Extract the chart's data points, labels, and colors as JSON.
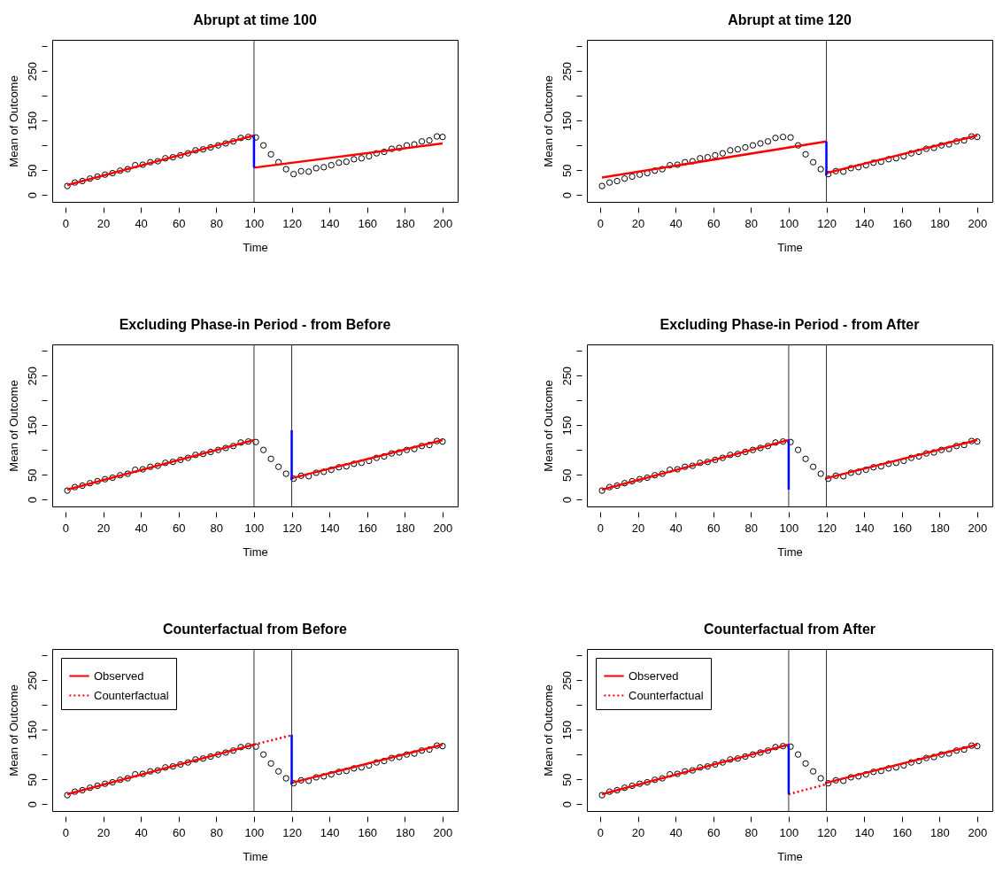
{
  "chart_data": [
    {
      "type": "scatter",
      "title": "Abrupt at time 100",
      "xlabel": "Time",
      "ylabel": "Mean of Outcome",
      "xlim": [
        -7,
        208
      ],
      "ylim": [
        -14,
        313
      ],
      "xticks": [
        0,
        20,
        40,
        60,
        80,
        100,
        120,
        140,
        160,
        180,
        200
      ],
      "yticks": [
        0,
        50,
        {
          "value": 100,
          "label": null
        },
        150,
        {
          "value": 200,
          "label": null
        },
        250,
        {
          "value": 300,
          "label": null
        }
      ],
      "ref_lines": [
        {
          "axis": "x",
          "value": 100
        }
      ],
      "series": [
        {
          "type": "scatter",
          "color": "#000000",
          "marker": "circle",
          "x": [
            1,
            5,
            9,
            13,
            17,
            21,
            25,
            29,
            33,
            37,
            41,
            45,
            49,
            53,
            57,
            61,
            65,
            69,
            73,
            77,
            81,
            85,
            89,
            93,
            97,
            101,
            105,
            109,
            113,
            117,
            121,
            125,
            129,
            133,
            137,
            141,
            145,
            149,
            153,
            157,
            161,
            165,
            169,
            173,
            177,
            181,
            185,
            189,
            193,
            197,
            200
          ],
          "values": [
            18,
            25,
            28,
            33,
            37,
            41,
            44,
            49,
            52,
            60,
            61,
            66,
            68,
            74,
            76,
            80,
            84,
            90,
            92,
            96,
            100,
            104,
            108,
            115,
            117,
            116,
            100,
            82,
            66,
            52,
            42,
            48,
            47,
            54,
            56,
            60,
            65,
            67,
            72,
            74,
            78,
            84,
            87,
            93,
            95,
            100,
            102,
            108,
            110,
            118,
            117
          ]
        },
        {
          "type": "line",
          "color": "#ff0000",
          "line_style": "solid",
          "x": [
            1,
            100
          ],
          "values": [
            20,
            120
          ]
        },
        {
          "type": "line",
          "color": "#ff0000",
          "line_style": "solid",
          "x": [
            100,
            200
          ],
          "values": [
            55,
            104
          ]
        },
        {
          "type": "line",
          "color": "#0000ff",
          "line_style": "solid",
          "x": [
            100,
            100
          ],
          "values": [
            120,
            55
          ]
        }
      ]
    },
    {
      "type": "scatter",
      "title": "Abrupt at time 120",
      "xlabel": "Time",
      "ylabel": "Mean of Outcome",
      "xlim": [
        -7,
        208
      ],
      "ylim": [
        -14,
        313
      ],
      "xticks": [
        0,
        20,
        40,
        60,
        80,
        100,
        120,
        140,
        160,
        180,
        200
      ],
      "yticks": [
        0,
        50,
        {
          "value": 100,
          "label": null
        },
        150,
        {
          "value": 200,
          "label": null
        },
        250,
        {
          "value": 300,
          "label": null
        }
      ],
      "ref_lines": [
        {
          "axis": "x",
          "value": 120
        }
      ],
      "series": [
        {
          "type": "scatter",
          "color": "#000000",
          "marker": "circle",
          "x": [
            1,
            5,
            9,
            13,
            17,
            21,
            25,
            29,
            33,
            37,
            41,
            45,
            49,
            53,
            57,
            61,
            65,
            69,
            73,
            77,
            81,
            85,
            89,
            93,
            97,
            101,
            105,
            109,
            113,
            117,
            121,
            125,
            129,
            133,
            137,
            141,
            145,
            149,
            153,
            157,
            161,
            165,
            169,
            173,
            177,
            181,
            185,
            189,
            193,
            197,
            200
          ],
          "values": [
            18,
            25,
            28,
            33,
            37,
            41,
            44,
            49,
            52,
            60,
            61,
            66,
            68,
            74,
            76,
            80,
            84,
            90,
            92,
            96,
            100,
            104,
            108,
            115,
            117,
            116,
            100,
            82,
            66,
            52,
            42,
            48,
            47,
            54,
            56,
            60,
            65,
            67,
            72,
            74,
            78,
            84,
            87,
            93,
            95,
            100,
            102,
            108,
            110,
            118,
            117
          ]
        },
        {
          "type": "line",
          "color": "#ff0000",
          "line_style": "solid",
          "x": [
            1,
            120
          ],
          "values": [
            35,
            108
          ]
        },
        {
          "type": "line",
          "color": "#ff0000",
          "line_style": "solid",
          "x": [
            120,
            200
          ],
          "values": [
            44,
            120
          ]
        },
        {
          "type": "line",
          "color": "#0000ff",
          "line_style": "solid",
          "x": [
            120,
            120
          ],
          "values": [
            108,
            40
          ]
        }
      ]
    },
    {
      "type": "scatter",
      "title": "Excluding Phase-in Period - from Before",
      "xlabel": "Time",
      "ylabel": "Mean of Outcome",
      "xlim": [
        -7,
        208
      ],
      "ylim": [
        -14,
        313
      ],
      "xticks": [
        0,
        20,
        40,
        60,
        80,
        100,
        120,
        140,
        160,
        180,
        200
      ],
      "yticks": [
        0,
        50,
        {
          "value": 100,
          "label": null
        },
        150,
        {
          "value": 200,
          "label": null
        },
        250,
        {
          "value": 300,
          "label": null
        }
      ],
      "ref_lines": [
        {
          "axis": "x",
          "value": 100
        },
        {
          "axis": "x",
          "value": 120
        }
      ],
      "series": [
        {
          "type": "scatter",
          "color": "#000000",
          "marker": "circle",
          "x": [
            1,
            5,
            9,
            13,
            17,
            21,
            25,
            29,
            33,
            37,
            41,
            45,
            49,
            53,
            57,
            61,
            65,
            69,
            73,
            77,
            81,
            85,
            89,
            93,
            97,
            101,
            105,
            109,
            113,
            117,
            121,
            125,
            129,
            133,
            137,
            141,
            145,
            149,
            153,
            157,
            161,
            165,
            169,
            173,
            177,
            181,
            185,
            189,
            193,
            197,
            200
          ],
          "values": [
            18,
            25,
            28,
            33,
            37,
            41,
            44,
            49,
            52,
            60,
            61,
            66,
            68,
            74,
            76,
            80,
            84,
            90,
            92,
            96,
            100,
            104,
            108,
            115,
            117,
            116,
            100,
            82,
            66,
            52,
            42,
            48,
            47,
            54,
            56,
            60,
            65,
            67,
            72,
            74,
            78,
            84,
            87,
            93,
            95,
            100,
            102,
            108,
            110,
            118,
            117
          ]
        },
        {
          "type": "line",
          "color": "#ff0000",
          "line_style": "solid",
          "x": [
            1,
            100
          ],
          "values": [
            20,
            120
          ]
        },
        {
          "type": "line",
          "color": "#ff0000",
          "line_style": "solid",
          "x": [
            120,
            200
          ],
          "values": [
            43,
            120
          ]
        },
        {
          "type": "line",
          "color": "#0000ff",
          "line_style": "solid",
          "x": [
            120,
            120
          ],
          "values": [
            140,
            40
          ]
        }
      ]
    },
    {
      "type": "scatter",
      "title": "Excluding Phase-in Period - from After",
      "xlabel": "Time",
      "ylabel": "Mean of Outcome",
      "xlim": [
        -7,
        208
      ],
      "ylim": [
        -14,
        313
      ],
      "xticks": [
        0,
        20,
        40,
        60,
        80,
        100,
        120,
        140,
        160,
        180,
        200
      ],
      "yticks": [
        0,
        50,
        {
          "value": 100,
          "label": null
        },
        150,
        {
          "value": 200,
          "label": null
        },
        250,
        {
          "value": 300,
          "label": null
        }
      ],
      "ref_lines": [
        {
          "axis": "x",
          "value": 100
        },
        {
          "axis": "x",
          "value": 120
        }
      ],
      "series": [
        {
          "type": "scatter",
          "color": "#000000",
          "marker": "circle",
          "x": [
            1,
            5,
            9,
            13,
            17,
            21,
            25,
            29,
            33,
            37,
            41,
            45,
            49,
            53,
            57,
            61,
            65,
            69,
            73,
            77,
            81,
            85,
            89,
            93,
            97,
            101,
            105,
            109,
            113,
            117,
            121,
            125,
            129,
            133,
            137,
            141,
            145,
            149,
            153,
            157,
            161,
            165,
            169,
            173,
            177,
            181,
            185,
            189,
            193,
            197,
            200
          ],
          "values": [
            18,
            25,
            28,
            33,
            37,
            41,
            44,
            49,
            52,
            60,
            61,
            66,
            68,
            74,
            76,
            80,
            84,
            90,
            92,
            96,
            100,
            104,
            108,
            115,
            117,
            116,
            100,
            82,
            66,
            52,
            42,
            48,
            47,
            54,
            56,
            60,
            65,
            67,
            72,
            74,
            78,
            84,
            87,
            93,
            95,
            100,
            102,
            108,
            110,
            118,
            117
          ]
        },
        {
          "type": "line",
          "color": "#ff0000",
          "line_style": "solid",
          "x": [
            1,
            100
          ],
          "values": [
            20,
            120
          ]
        },
        {
          "type": "line",
          "color": "#ff0000",
          "line_style": "solid",
          "x": [
            120,
            200
          ],
          "values": [
            43,
            120
          ]
        },
        {
          "type": "line",
          "color": "#0000ff",
          "line_style": "solid",
          "x": [
            100,
            100
          ],
          "values": [
            120,
            20
          ]
        }
      ]
    },
    {
      "type": "scatter",
      "title": "Counterfactual from Before",
      "xlabel": "Time",
      "ylabel": "Mean of Outcome",
      "xlim": [
        -7,
        208
      ],
      "ylim": [
        -14,
        313
      ],
      "xticks": [
        0,
        20,
        40,
        60,
        80,
        100,
        120,
        140,
        160,
        180,
        200
      ],
      "yticks": [
        0,
        50,
        {
          "value": 100,
          "label": null
        },
        150,
        {
          "value": 200,
          "label": null
        },
        250,
        {
          "value": 300,
          "label": null
        }
      ],
      "ref_lines": [
        {
          "axis": "x",
          "value": 100
        },
        {
          "axis": "x",
          "value": 120
        }
      ],
      "legend": "top left",
      "series": [
        {
          "type": "scatter",
          "color": "#000000",
          "marker": "circle",
          "x": [
            1,
            5,
            9,
            13,
            17,
            21,
            25,
            29,
            33,
            37,
            41,
            45,
            49,
            53,
            57,
            61,
            65,
            69,
            73,
            77,
            81,
            85,
            89,
            93,
            97,
            101,
            105,
            109,
            113,
            117,
            121,
            125,
            129,
            133,
            137,
            141,
            145,
            149,
            153,
            157,
            161,
            165,
            169,
            173,
            177,
            181,
            185,
            189,
            193,
            197,
            200
          ],
          "values": [
            18,
            25,
            28,
            33,
            37,
            41,
            44,
            49,
            52,
            60,
            61,
            66,
            68,
            74,
            76,
            80,
            84,
            90,
            92,
            96,
            100,
            104,
            108,
            115,
            117,
            116,
            100,
            82,
            66,
            52,
            42,
            48,
            47,
            54,
            56,
            60,
            65,
            67,
            72,
            74,
            78,
            84,
            87,
            93,
            95,
            100,
            102,
            108,
            110,
            118,
            117
          ]
        },
        {
          "type": "line",
          "name": "Observed",
          "color": "#ff0000",
          "line_style": "solid",
          "x": [
            1,
            100,
            110,
            120,
            200
          ],
          "values": [
            20,
            120,
            null,
            43,
            120
          ]
        },
        {
          "type": "line",
          "name": "Counterfactual",
          "color": "#ff0000",
          "line_style": "dotted",
          "x": [
            100,
            120
          ],
          "values": [
            120,
            139
          ]
        },
        {
          "type": "line",
          "color": "#0000ff",
          "line_style": "solid",
          "x": [
            120,
            120
          ],
          "values": [
            140,
            40
          ]
        }
      ]
    },
    {
      "type": "scatter",
      "title": "Counterfactual from After",
      "xlabel": "Time",
      "ylabel": "Mean of Outcome",
      "xlim": [
        -7,
        208
      ],
      "ylim": [
        -14,
        313
      ],
      "xticks": [
        0,
        20,
        40,
        60,
        80,
        100,
        120,
        140,
        160,
        180,
        200
      ],
      "yticks": [
        0,
        50,
        {
          "value": 100,
          "label": null
        },
        150,
        {
          "value": 200,
          "label": null
        },
        250,
        {
          "value": 300,
          "label": null
        }
      ],
      "ref_lines": [
        {
          "axis": "x",
          "value": 100
        },
        {
          "axis": "x",
          "value": 120
        }
      ],
      "legend": "top left",
      "series": [
        {
          "type": "scatter",
          "color": "#000000",
          "marker": "circle",
          "x": [
            1,
            5,
            9,
            13,
            17,
            21,
            25,
            29,
            33,
            37,
            41,
            45,
            49,
            53,
            57,
            61,
            65,
            69,
            73,
            77,
            81,
            85,
            89,
            93,
            97,
            101,
            105,
            109,
            113,
            117,
            121,
            125,
            129,
            133,
            137,
            141,
            145,
            149,
            153,
            157,
            161,
            165,
            169,
            173,
            177,
            181,
            185,
            189,
            193,
            197,
            200
          ],
          "values": [
            18,
            25,
            28,
            33,
            37,
            41,
            44,
            49,
            52,
            60,
            61,
            66,
            68,
            74,
            76,
            80,
            84,
            90,
            92,
            96,
            100,
            104,
            108,
            115,
            117,
            116,
            100,
            82,
            66,
            52,
            42,
            48,
            47,
            54,
            56,
            60,
            65,
            67,
            72,
            74,
            78,
            84,
            87,
            93,
            95,
            100,
            102,
            108,
            110,
            118,
            117
          ]
        },
        {
          "type": "line",
          "name": "Observed",
          "color": "#ff0000",
          "line_style": "solid",
          "x": [
            1,
            100,
            110,
            120,
            200
          ],
          "values": [
            20,
            120,
            null,
            43,
            120
          ]
        },
        {
          "type": "line",
          "name": "Counterfactual",
          "color": "#ff0000",
          "line_style": "dotted",
          "x": [
            100,
            120
          ],
          "values": [
            20,
            40
          ]
        },
        {
          "type": "line",
          "color": "#0000ff",
          "line_style": "solid",
          "x": [
            100,
            100
          ],
          "values": [
            120,
            20
          ]
        }
      ]
    }
  ]
}
